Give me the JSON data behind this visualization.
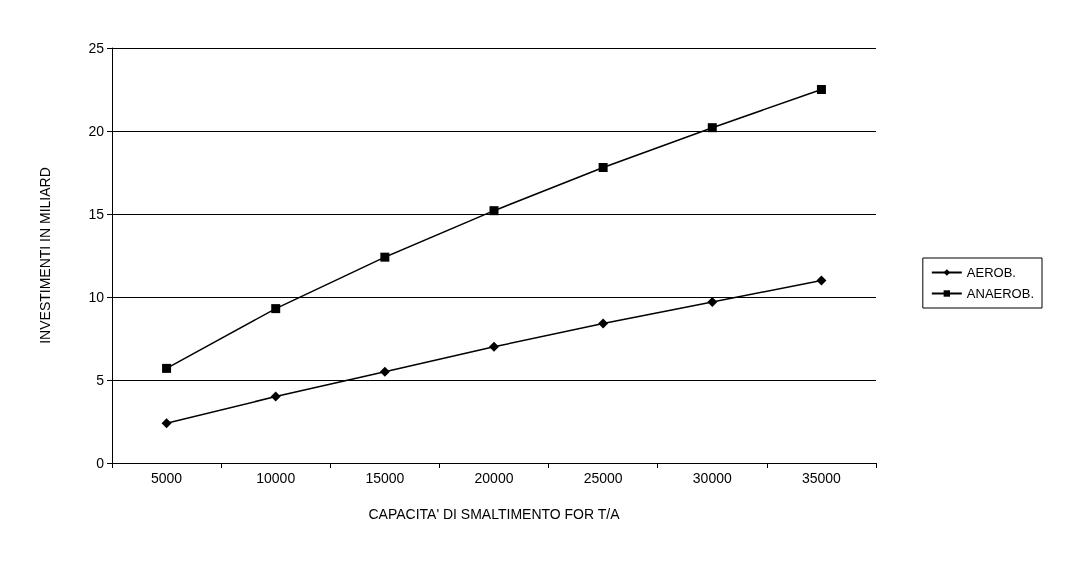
{
  "chart_data": {
    "type": "line",
    "xlabel": "CAPACITA' DI SMALTIMENTO FOR T/A",
    "ylabel": "INVESTIMENTI IN MILIARD",
    "categories": [
      "5000",
      "10000",
      "15000",
      "20000",
      "25000",
      "30000",
      "35000"
    ],
    "series": [
      {
        "name": "AEROB.",
        "color": "#000000",
        "marker": "diamond",
        "values": [
          2.4,
          4.0,
          5.5,
          7.0,
          8.4,
          9.7,
          11.0
        ]
      },
      {
        "name": "ANAEROB.",
        "color": "#000000",
        "marker": "square",
        "values": [
          5.7,
          9.3,
          12.4,
          15.2,
          17.8,
          20.2,
          22.5
        ]
      }
    ],
    "ylim": [
      0,
      25
    ],
    "yticks": [
      0,
      5,
      10,
      15,
      20,
      25
    ],
    "grid": "y",
    "legend": "right",
    "line_style": "solid"
  }
}
